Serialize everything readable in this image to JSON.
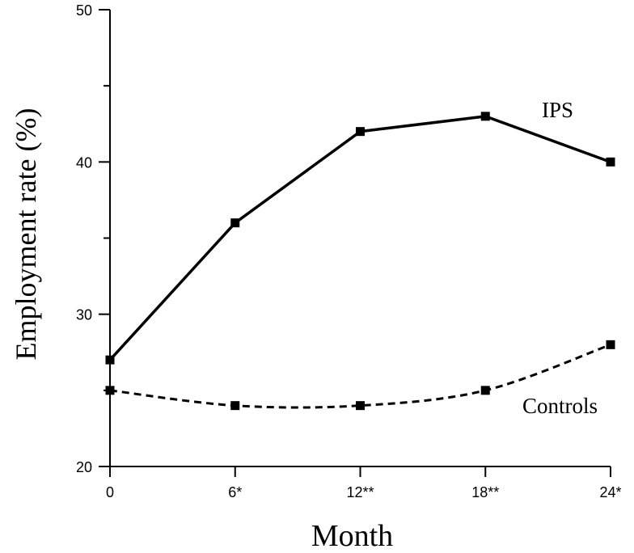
{
  "chart_data": {
    "type": "line",
    "title": "",
    "xlabel": "Month",
    "ylabel": "Employment rate (%)",
    "categories": [
      "0",
      "6*",
      "12**",
      "18**",
      "24*"
    ],
    "ylim": [
      20,
      50
    ],
    "yticks": [
      "20",
      "30",
      "40",
      "50"
    ],
    "grid": false,
    "legend": "none",
    "series": [
      {
        "name": "IPS",
        "values": [
          27,
          36,
          42,
          43,
          40
        ],
        "line_style": "solid",
        "color": "#000000",
        "marker": "square"
      },
      {
        "name": "Controls",
        "values": [
          25,
          24,
          24,
          25,
          28
        ],
        "line_style": "dashed",
        "color": "#000000",
        "marker": "square"
      }
    ]
  }
}
